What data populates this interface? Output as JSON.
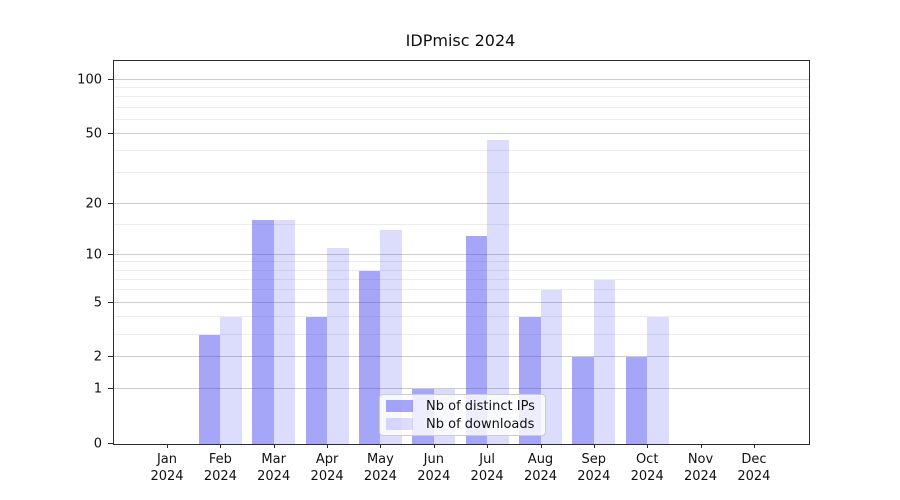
{
  "title": "IDPmisc 2024",
  "chart_data": {
    "type": "bar",
    "title": "IDPmisc 2024",
    "categories": [
      "Jan",
      "Feb",
      "Mar",
      "Apr",
      "May",
      "Jun",
      "Jul",
      "Aug",
      "Sep",
      "Oct",
      "Nov",
      "Dec"
    ],
    "year_label": "2024",
    "series": [
      {
        "name": "Nb of distinct IPs",
        "color_hex": "#a6a6f3",
        "css_color": "rgba(70,70,240,0.48)",
        "values": [
          0,
          3,
          16,
          4,
          8,
          1,
          13,
          4,
          2,
          2,
          0,
          0
        ]
      },
      {
        "name": "Nb of downloads",
        "color_hex": "#dcdcfa",
        "css_color": "rgba(70,70,240,0.19)",
        "values": [
          0,
          4,
          16,
          11,
          14,
          1,
          46,
          6,
          7,
          4,
          0,
          0
        ]
      }
    ],
    "xlabel": "",
    "ylabel": "",
    "yscale": "log1p",
    "ylim": [
      0,
      127
    ],
    "yticks": [
      0,
      1,
      2,
      5,
      10,
      20,
      50,
      100
    ],
    "minor_yticks": [
      3,
      4,
      6,
      7,
      8,
      9,
      15,
      30,
      40,
      60,
      70,
      80,
      90
    ],
    "grid": true,
    "legend_position": "lower center",
    "colors": {
      "axis": "#2b2b2b",
      "major_grid": "#cccccc",
      "minor_grid": "#ececec",
      "legend_border": "#cccccc",
      "text": "#111111"
    }
  }
}
